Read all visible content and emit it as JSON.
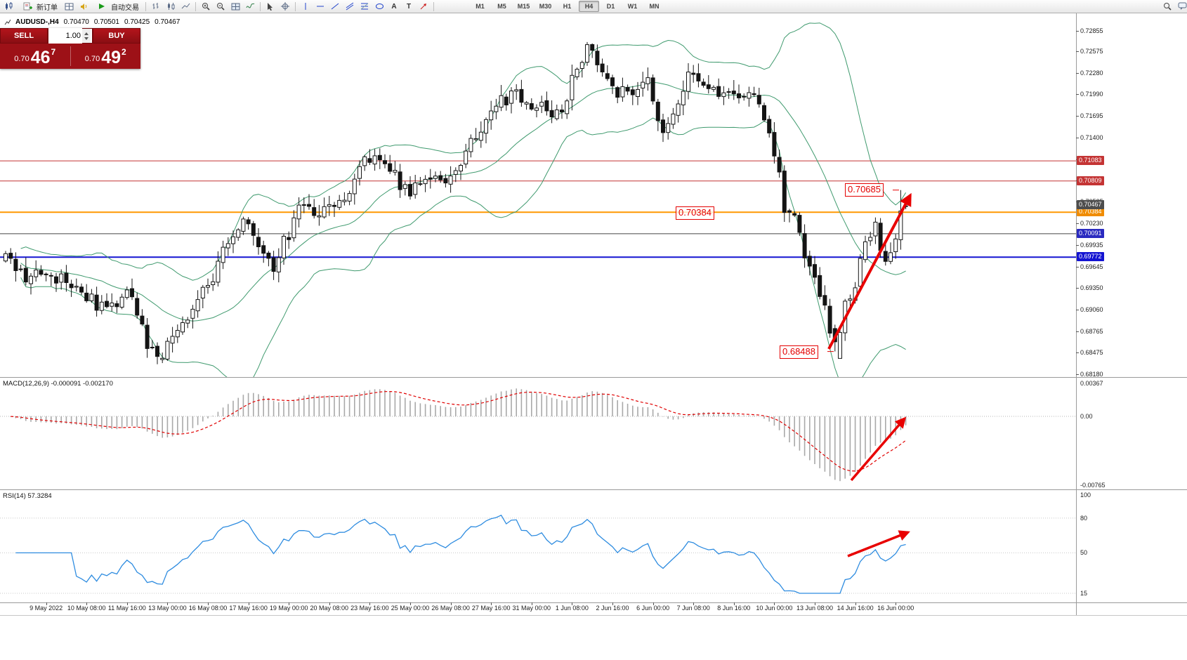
{
  "toolbar": {
    "new_order": "新订单",
    "auto_trading": "自动交易",
    "timeframes": [
      "M1",
      "M5",
      "M15",
      "M30",
      "H1",
      "H4",
      "D1",
      "W1",
      "MN"
    ],
    "active_timeframe": "H4",
    "text_tool": "A",
    "label_tool": "T"
  },
  "symbol_header": {
    "symbol": "AUDUSD-,H4",
    "open": "0.70470",
    "high": "0.70501",
    "low": "0.70425",
    "close": "0.70467"
  },
  "trade_panel": {
    "sell": "SELL",
    "buy": "BUY",
    "volume": "1.00",
    "sell_prefix": "0.70",
    "sell_big": "46",
    "sell_sup": "7",
    "buy_prefix": "0.70",
    "buy_big": "49",
    "buy_sup": "2"
  },
  "annotations": {
    "resistance_mid": "0.70384",
    "swing_high": "0.70685",
    "swing_low": "0.68488"
  },
  "macd_panel": {
    "title": "MACD(12,26,9) -0.000091 -0.002170",
    "axis_top": "0.00367",
    "axis_zero": "0.00",
    "axis_bottom": "-0.00765"
  },
  "rsi_panel": {
    "title": "RSI(14) 57.3284",
    "axis": [
      {
        "label": "100",
        "value": 100
      },
      {
        "label": "80",
        "value": 80
      },
      {
        "label": "50",
        "value": 50
      },
      {
        "label": "15",
        "value": 15
      }
    ]
  },
  "price_axis": {
    "ticks": [
      "0.72855",
      "0.72575",
      "0.72280",
      "0.71990",
      "0.71695",
      "0.71400",
      "0.71105",
      "0.70815",
      "0.70525",
      "0.70230",
      "0.69935",
      "0.69645",
      "0.69350",
      "0.69060",
      "0.68765",
      "0.68475",
      "0.68180"
    ]
  },
  "levels": [
    {
      "value": "0.71083",
      "price": 0.71083,
      "color": "#c43434",
      "width": 1,
      "box": "#c43434"
    },
    {
      "value": "0.70809",
      "price": 0.70809,
      "color": "#c43434",
      "width": 1,
      "box": "#c43434"
    },
    {
      "value": "0.70384",
      "price": 0.70384,
      "color": "#ff9800",
      "width": 2,
      "box": "#f08c00"
    },
    {
      "value": "0.70091",
      "price": 0.70091,
      "color": "#454545",
      "width": 1,
      "box": "#2a2ac0"
    },
    {
      "value": "0.69772",
      "price": 0.69772,
      "color": "#1414d2",
      "width": 2,
      "box": "#1414d2"
    }
  ],
  "current_price": {
    "value": "0.70467",
    "price": 0.70467,
    "box": "#4d4d4d"
  },
  "time_axis": {
    "labels": [
      "9 May 2022",
      "10 May 08:00",
      "11 May 16:00",
      "13 May 00:00",
      "16 May 08:00",
      "17 May 16:00",
      "19 May 00:00",
      "20 May 08:00",
      "23 May 16:00",
      "25 May 00:00",
      "26 May 08:00",
      "27 May 16:00",
      "31 May 00:00",
      "1 Jun 08:00",
      "2 Jun 16:00",
      "6 Jun 00:00",
      "7 Jun 08:00",
      "8 Jun 16:00",
      "10 Jun 00:00",
      "13 Jun 08:00",
      "14 Jun 16:00",
      "16 Jun 00:00"
    ]
  },
  "chart_data": {
    "type": "candlestick",
    "symbol": "AUDUSD",
    "timeframe": "H4",
    "current_bar": {
      "open": 0.7047,
      "high": 0.70501,
      "low": 0.70425,
      "close": 0.70467
    },
    "indicators": [
      {
        "name": "Bollinger Bands",
        "period": 20,
        "deviation": 2,
        "color": "#3f9a6e"
      },
      {
        "name": "MACD",
        "fast": 12,
        "slow": 26,
        "signal": 9,
        "values": [
          -9.1e-05,
          -0.00217
        ]
      },
      {
        "name": "RSI",
        "period": 14,
        "value": 57.3284
      }
    ],
    "horizontal_levels": [
      0.71083,
      0.70809,
      0.70384,
      0.70091,
      0.69772
    ],
    "marked_prices": {
      "swing_high": 0.70685,
      "swing_low": 0.68488,
      "mid_level": 0.70384
    },
    "price_range": [
      0.6814,
      0.731
    ],
    "bars_total": 179,
    "waypoints": [
      [
        0,
        0.6972
      ],
      [
        4,
        0.695
      ],
      [
        8,
        0.6958
      ],
      [
        14,
        0.6938
      ],
      [
        20,
        0.6902
      ],
      [
        24,
        0.6937
      ],
      [
        28,
        0.6855
      ],
      [
        30,
        0.6833
      ],
      [
        34,
        0.6882
      ],
      [
        37,
        0.6912
      ],
      [
        41,
        0.6952
      ],
      [
        44,
        0.7002
      ],
      [
        47,
        0.703
      ],
      [
        50,
        0.6988
      ],
      [
        53,
        0.6962
      ],
      [
        56,
        0.7012
      ],
      [
        59,
        0.7052
      ],
      [
        62,
        0.7032
      ],
      [
        65,
        0.7042
      ],
      [
        68,
        0.7062
      ],
      [
        71,
        0.7105
      ],
      [
        74,
        0.7112
      ],
      [
        77,
        0.7088
      ],
      [
        80,
        0.7058
      ],
      [
        83,
        0.7092
      ],
      [
        86,
        0.7078
      ],
      [
        89,
        0.7102
      ],
      [
        92,
        0.7128
      ],
      [
        95,
        0.7162
      ],
      [
        98,
        0.7188
      ],
      [
        101,
        0.7202
      ],
      [
        104,
        0.7188
      ],
      [
        107,
        0.7175
      ],
      [
        110,
        0.7182
      ],
      [
        113,
        0.723
      ],
      [
        115,
        0.7268
      ],
      [
        117,
        0.7244
      ],
      [
        119,
        0.7222
      ],
      [
        121,
        0.7205
      ],
      [
        124,
        0.719
      ],
      [
        127,
        0.7215
      ],
      [
        130,
        0.715
      ],
      [
        133,
        0.7195
      ],
      [
        136,
        0.723
      ],
      [
        139,
        0.7205
      ],
      [
        142,
        0.719
      ],
      [
        145,
        0.7195
      ],
      [
        148,
        0.7195
      ],
      [
        150,
        0.716
      ],
      [
        152,
        0.712
      ],
      [
        154,
        0.7048
      ],
      [
        156,
        0.703
      ],
      [
        158,
        0.6978
      ],
      [
        160,
        0.6945
      ],
      [
        162,
        0.6905
      ],
      [
        163,
        0.687
      ],
      [
        164,
        0.68488
      ],
      [
        166,
        0.6908
      ],
      [
        168,
        0.6945
      ],
      [
        170,
        0.699
      ],
      [
        172,
        0.7025
      ],
      [
        174,
        0.6962
      ],
      [
        175,
        0.6985
      ],
      [
        176,
        0.7
      ],
      [
        177,
        0.704
      ],
      [
        178,
        0.70467
      ]
    ],
    "forced_bars": {
      "30": {
        "o": 0.6856,
        "c": 0.6842,
        "l": 0.68315
      },
      "115": {
        "h": 0.727
      },
      "164": {
        "o": 0.688,
        "c": 0.6862,
        "l": 0.68488
      },
      "177": {
        "h": 0.70685,
        "c": 0.704
      },
      "178": {
        "o": 0.7047,
        "h": 0.70501,
        "l": 0.70425,
        "c": 0.70467
      }
    }
  }
}
